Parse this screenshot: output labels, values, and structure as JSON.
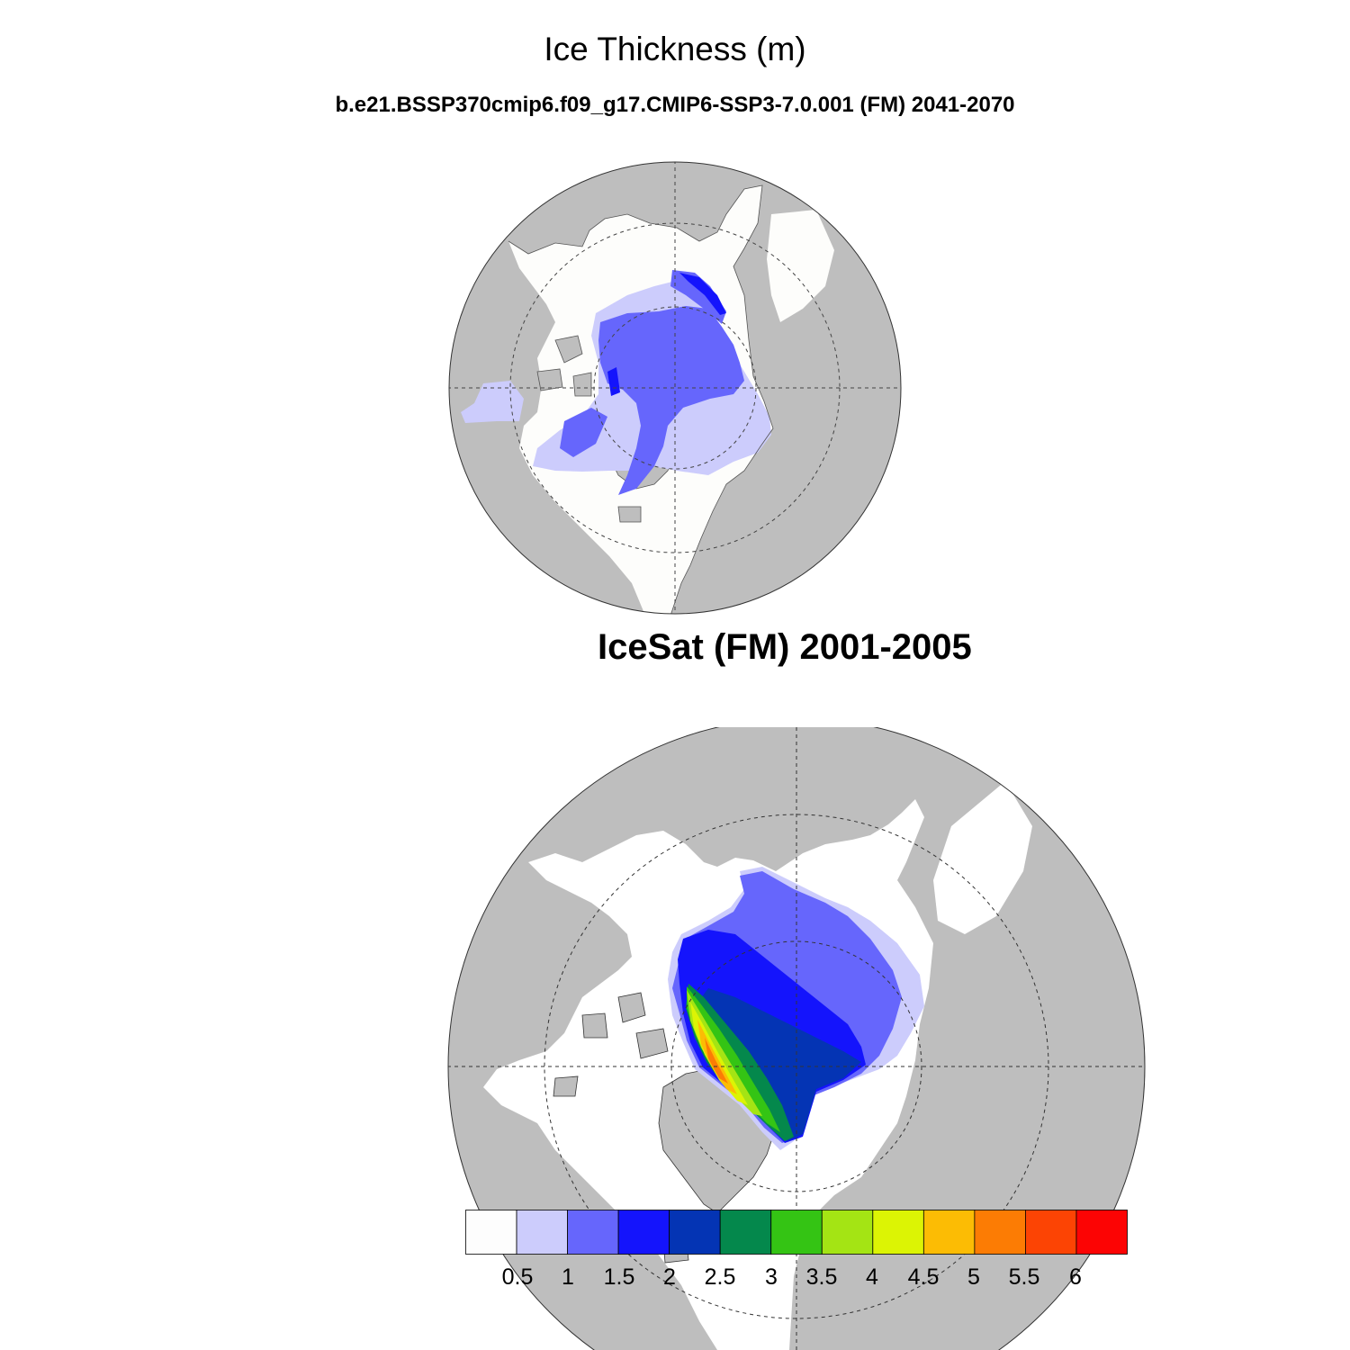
{
  "title": "Ice Thickness (m)",
  "subtitle": "b.e21.BSSP370cmip6.f09_g17.CMIP6-SSP3-7.0.001 (FM) 2041-2070",
  "panel2_title": "IceSat (FM) 2001-2005",
  "colors": {
    "land": "#bebebe",
    "ocean_top": "#fdfdfb",
    "ocean_bottom": "#ffffff"
  },
  "colorbar": {
    "labels": [
      "0.5",
      "1",
      "1.5",
      "2",
      "2.5",
      "3",
      "3.5",
      "4",
      "4.5",
      "5",
      "5.5",
      "6"
    ],
    "colors": [
      "#fdfdfd",
      "#ccccfc",
      "#6666fc",
      "#1414fc",
      "#0434b4",
      "#04884c",
      "#34c414",
      "#a4e414",
      "#dcf404",
      "#fcbc04",
      "#fc7c04",
      "#fc4404",
      "#fc0404"
    ]
  }
}
